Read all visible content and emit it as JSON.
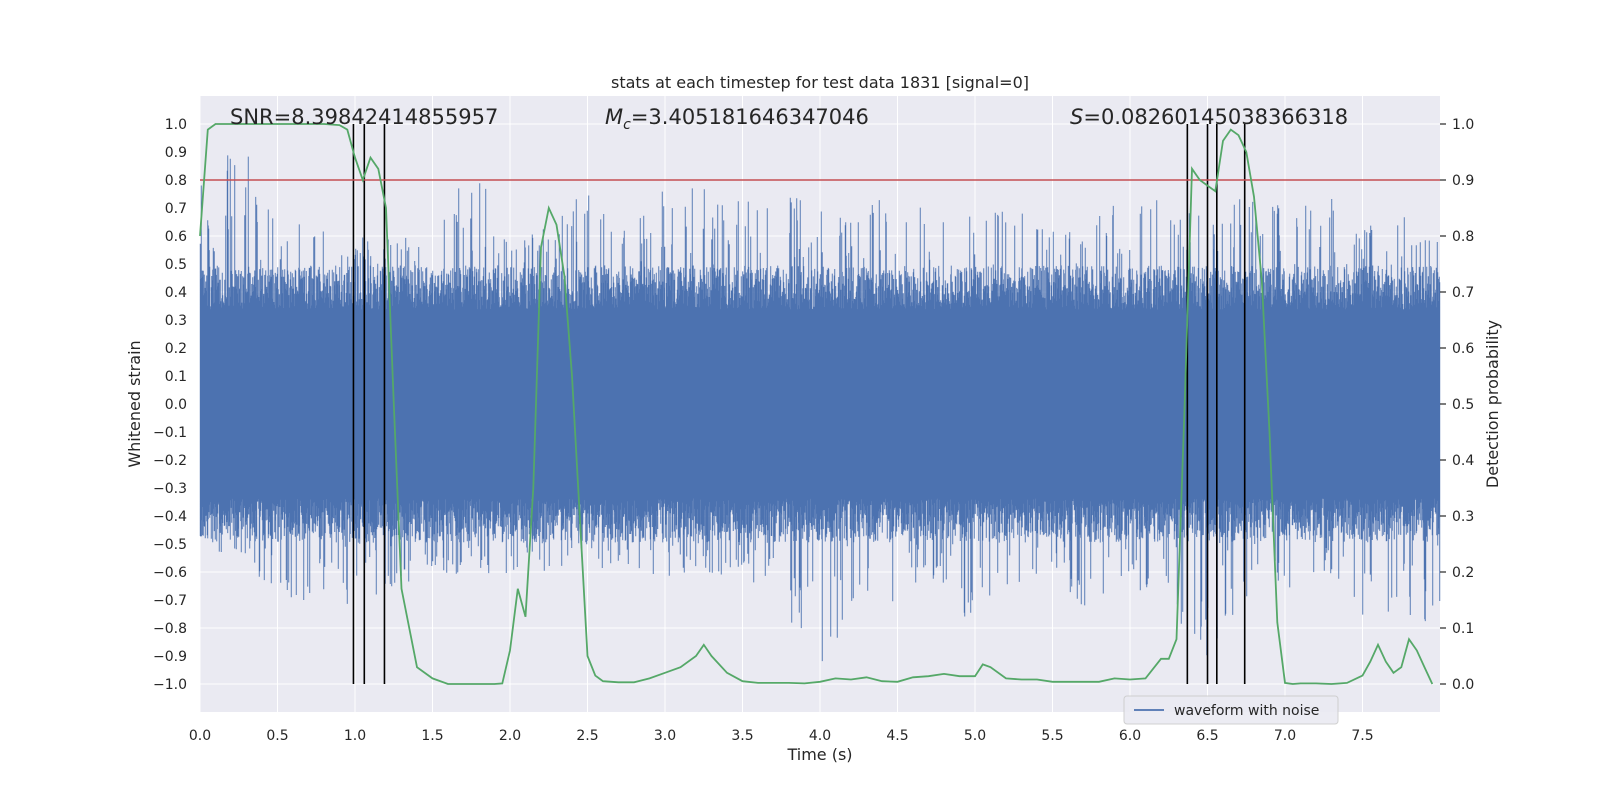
{
  "chart_data": {
    "type": "line",
    "title": "stats at each timestep for test data 1831 [signal=0]",
    "xlabel": "Time (s)",
    "ylabel": "Whitened strain",
    "y2label": "Detection probability",
    "xlim": [
      0.0,
      8.0
    ],
    "ylim": [
      -1.1,
      1.1
    ],
    "y2lim": [
      -0.05,
      1.05
    ],
    "xticks": [
      "0.0",
      "0.5",
      "1.0",
      "1.5",
      "2.0",
      "2.5",
      "3.0",
      "3.5",
      "4.0",
      "4.5",
      "5.0",
      "5.5",
      "6.0",
      "6.5",
      "7.0",
      "7.5"
    ],
    "yticks": [
      "1.0",
      "0.9",
      "0.8",
      "0.7",
      "0.6",
      "0.5",
      "0.4",
      "0.3",
      "0.2",
      "0.1",
      "0.0",
      "-0.1",
      "-0.2",
      "-0.3",
      "-0.4",
      "-0.5",
      "-0.6",
      "-0.7",
      "-0.8",
      "-0.9",
      "-1.0"
    ],
    "y2ticks": [
      "1.0",
      "0.9",
      "0.8",
      "0.7",
      "0.6",
      "0.5",
      "0.4",
      "0.3",
      "0.2",
      "0.1",
      "0.0"
    ],
    "annotations": {
      "snr_label": "SNR=8.39842414855957",
      "mc_symbol": "M",
      "mc_sub": "c",
      "mc_value": "=3.405181646347046",
      "s_symbol": "S",
      "s_value": "=0.08260145038366318"
    },
    "grid": true,
    "legend_position": "lower-right",
    "series": [
      {
        "name": "waveform with noise",
        "axis": "left",
        "color": "#4c72b0",
        "envelope": {
          "time": [
            0.0,
            0.25,
            0.5,
            0.75,
            1.0,
            1.25,
            1.5,
            1.75,
            2.0,
            2.25,
            2.5,
            2.75,
            3.0,
            3.25,
            3.5,
            3.75,
            4.0,
            4.25,
            4.5,
            4.75,
            5.0,
            5.25,
            5.5,
            5.75,
            6.0,
            6.25,
            6.5,
            6.75,
            7.0,
            7.25,
            7.5,
            7.75,
            8.0
          ],
          "typical_amplitude": 0.45,
          "peak_max": [
            0.78,
            0.99,
            0.62,
            0.66,
            0.6,
            0.6,
            0.6,
            0.89,
            0.6,
            0.64,
            0.78,
            0.66,
            0.78,
            0.78,
            0.72,
            0.77,
            0.7,
            0.66,
            0.82,
            0.64,
            0.71,
            0.7,
            0.63,
            0.66,
            0.78,
            0.72,
            0.7,
            0.74,
            0.72,
            0.78,
            0.64,
            0.7,
            0.6
          ],
          "peak_min": [
            -0.58,
            -0.55,
            -0.68,
            -0.75,
            -0.73,
            -0.65,
            -0.62,
            -0.6,
            -0.62,
            -0.6,
            -0.6,
            -0.58,
            -0.62,
            -0.6,
            -0.62,
            -0.7,
            -1.0,
            -0.65,
            -0.78,
            -0.62,
            -0.82,
            -0.65,
            -0.6,
            -0.78,
            -0.65,
            -0.72,
            -0.93,
            -0.7,
            -0.66,
            -0.62,
            -0.76,
            -0.75,
            -0.8
          ]
        }
      },
      {
        "name": "Detection probability",
        "axis": "right",
        "color": "#55a868",
        "x": [
          0.0,
          0.05,
          0.1,
          0.2,
          0.3,
          0.4,
          0.5,
          0.6,
          0.7,
          0.8,
          0.9,
          0.95,
          1.0,
          1.05,
          1.1,
          1.15,
          1.2,
          1.25,
          1.3,
          1.4,
          1.5,
          1.6,
          1.7,
          1.8,
          1.9,
          1.95,
          2.0,
          2.05,
          2.1,
          2.15,
          2.2,
          2.25,
          2.3,
          2.35,
          2.4,
          2.5,
          2.55,
          2.6,
          2.7,
          2.8,
          2.9,
          3.0,
          3.1,
          3.2,
          3.25,
          3.3,
          3.4,
          3.5,
          3.6,
          3.7,
          3.8,
          3.9,
          4.0,
          4.1,
          4.2,
          4.3,
          4.4,
          4.5,
          4.6,
          4.7,
          4.8,
          4.9,
          5.0,
          5.05,
          5.1,
          5.2,
          5.3,
          5.4,
          5.5,
          5.6,
          5.7,
          5.8,
          5.9,
          6.0,
          6.1,
          6.2,
          6.25,
          6.3,
          6.35,
          6.4,
          6.45,
          6.5,
          6.55,
          6.6,
          6.65,
          6.7,
          6.75,
          6.8,
          6.85,
          6.9,
          6.95,
          7.0,
          7.05,
          7.1,
          7.2,
          7.3,
          7.4,
          7.5,
          7.55,
          7.6,
          7.65,
          7.7,
          7.75,
          7.8,
          7.85,
          7.9,
          7.95
        ],
        "y": [
          0.8,
          0.99,
          1.0,
          1.0,
          1.0,
          1.0,
          1.0,
          1.0,
          1.0,
          1.0,
          0.998,
          0.99,
          0.94,
          0.9,
          0.94,
          0.92,
          0.85,
          0.5,
          0.17,
          0.03,
          0.01,
          0.0,
          0.0,
          0.0,
          0.0,
          0.001,
          0.06,
          0.17,
          0.12,
          0.35,
          0.78,
          0.85,
          0.82,
          0.73,
          0.55,
          0.05,
          0.015,
          0.005,
          0.003,
          0.003,
          0.01,
          0.02,
          0.03,
          0.05,
          0.07,
          0.05,
          0.02,
          0.005,
          0.002,
          0.002,
          0.002,
          0.001,
          0.004,
          0.01,
          0.008,
          0.012,
          0.005,
          0.004,
          0.012,
          0.014,
          0.018,
          0.014,
          0.014,
          0.035,
          0.03,
          0.01,
          0.008,
          0.008,
          0.004,
          0.004,
          0.004,
          0.004,
          0.01,
          0.008,
          0.01,
          0.045,
          0.045,
          0.08,
          0.48,
          0.92,
          0.9,
          0.89,
          0.88,
          0.97,
          0.99,
          0.98,
          0.95,
          0.87,
          0.72,
          0.45,
          0.11,
          0.002,
          0.0,
          0.001,
          0.001,
          0.0,
          0.002,
          0.015,
          0.04,
          0.07,
          0.04,
          0.02,
          0.03,
          0.08,
          0.06,
          0.03,
          0.0
        ]
      }
    ],
    "threshold": {
      "axis": "right",
      "value": 0.9,
      "color": "#c44e52"
    },
    "vertical_markers": [
      0.99,
      1.06,
      1.19,
      6.37,
      6.5,
      6.56,
      6.74
    ],
    "legend": [
      {
        "label": "waveform with noise",
        "color": "#4c72b0"
      }
    ]
  }
}
